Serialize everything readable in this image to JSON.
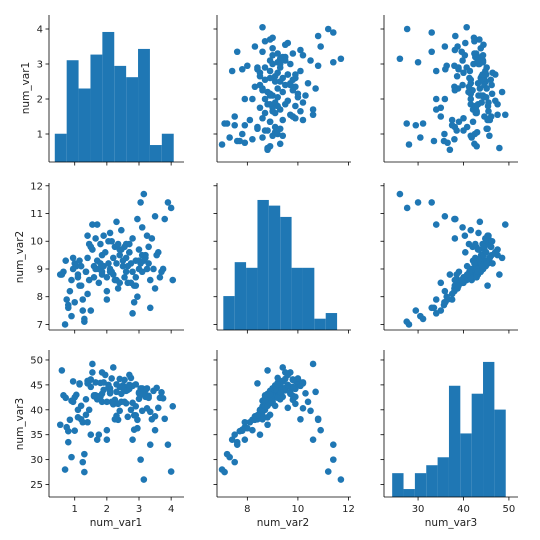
{
  "chart_data": {
    "type": "pairplot",
    "variables": [
      "num_var1",
      "num_var2",
      "num_var3"
    ],
    "color": "#1f77b4",
    "axes": {
      "num_var1": {
        "lim": [
          0.2,
          4.4
        ],
        "ticks": [
          1,
          2,
          3,
          4
        ],
        "tick_labels": [
          "1",
          "2",
          "3",
          "4"
        ]
      },
      "num_var2": {
        "lim": [
          6.8,
          12.1
        ],
        "ticks": [
          7,
          8,
          9,
          10,
          11,
          12
        ],
        "tick_labels": [
          "7",
          "8",
          "9",
          "10",
          "11",
          "12"
        ],
        "x_ticks": [
          8,
          10,
          12
        ],
        "x_tick_labels": [
          "8",
          "10",
          "12"
        ]
      },
      "num_var3": {
        "lim": [
          22.5,
          52.0
        ],
        "ticks": [
          25,
          30,
          35,
          40,
          45,
          50
        ],
        "tick_labels": [
          "25",
          "30",
          "35",
          "40",
          "45",
          "50"
        ],
        "x_ticks": [
          30,
          40,
          50
        ],
        "x_tick_labels": [
          "30",
          "40",
          "50"
        ]
      }
    },
    "histograms": {
      "num_var1": {
        "edges": [
          0.38,
          0.75,
          1.12,
          1.49,
          1.86,
          2.23,
          2.6,
          2.97,
          3.34,
          3.71,
          4.08
        ],
        "counts": [
          5,
          18,
          13,
          19,
          23,
          17,
          15,
          20,
          3,
          5
        ],
        "ymax": 26
      },
      "num_var2": {
        "edges": [
          7.05,
          7.5,
          7.95,
          8.4,
          8.85,
          9.3,
          9.75,
          10.2,
          10.65,
          11.1,
          11.55
        ],
        "counts": [
          6,
          12,
          11,
          23,
          22,
          20,
          11,
          11,
          2,
          3
        ],
        "ymax": 26
      },
      "num_var3": {
        "edges": [
          24.3,
          26.8,
          29.3,
          31.8,
          34.3,
          36.8,
          39.3,
          41.8,
          44.3,
          46.8,
          49.3
        ],
        "counts": [
          3,
          1,
          3,
          4,
          5,
          14,
          8,
          13,
          17,
          11
        ],
        "ymax": 18.5
      }
    },
    "points": {
      "num_var1": [
        0.65,
        0.72,
        0.8,
        0.9,
        0.95,
        1.05,
        0.7,
        0.85,
        1.0,
        1.1,
        0.75,
        1.2,
        0.6,
        0.9,
        1.15,
        1.3,
        1.35,
        1.4,
        1.25,
        1.5,
        1.55,
        1.6,
        1.45,
        1.65,
        1.7,
        1.75,
        1.3,
        1.4,
        1.55,
        1.8,
        1.85,
        1.9,
        1.95,
        2.0,
        1.85,
        2.05,
        2.1,
        2.15,
        2.2,
        2.25,
        2.3,
        2.0,
        2.1,
        2.35,
        2.4,
        2.45,
        2.5,
        2.55,
        2.6,
        2.65,
        2.7,
        2.75,
        2.8,
        2.85,
        2.9,
        2.95,
        3.0,
        3.05,
        3.1,
        3.15,
        3.2,
        3.25,
        3.3,
        3.4,
        3.5,
        3.6,
        3.7,
        3.8,
        3.9,
        4.0,
        4.05,
        1.0,
        1.2,
        1.6,
        2.2,
        2.6,
        3.0,
        3.35,
        1.45,
        2.3,
        2.8,
        3.1,
        1.75,
        2.45,
        2.9,
        3.2,
        1.1,
        1.7,
        2.15,
        2.5,
        2.75,
        3.05,
        3.45,
        3.65,
        1.35,
        1.85,
        2.35,
        2.65,
        3.15,
        3.55,
        0.55,
        0.8,
        1.5,
        2.05,
        2.4,
        2.7,
        3.25,
        3.75,
        1.25,
        1.9,
        2.55,
        2.95,
        3.35,
        0.95,
        1.65,
        2.25,
        2.85,
        3.5,
        1.15,
        1.8,
        2.6,
        3.0,
        3.3,
        2.0,
        2.4,
        2.8,
        1.5,
        2.1,
        2.7,
        3.1,
        1.4,
        2.3,
        2.9
      ],
      "num_var2": [
        8.9,
        9.3,
        7.6,
        8.6,
        9.0,
        9.1,
        7.0,
        8.2,
        9.2,
        8.7,
        7.9,
        9.1,
        8.8,
        7.3,
        8.4,
        7.2,
        8.9,
        9.4,
        7.5,
        9.8,
        10.6,
        8.7,
        9.9,
        10.1,
        9.3,
        8.5,
        7.1,
        8.1,
        9.7,
        9.2,
        8.8,
        10.2,
        9.6,
        8.2,
        9.5,
        10.0,
        10.3,
        8.9,
        9.4,
        9.8,
        8.6,
        7.9,
        9.0,
        8.3,
        9.5,
        10.4,
        9.1,
        8.7,
        9.9,
        8.5,
        9.6,
        9.2,
        10.1,
        8.4,
        9.3,
        10.8,
        9.7,
        11.4,
        10.5,
        11.7,
        9.5,
        10.2,
        9.8,
        10.1,
        10.9,
        9.6,
        8.9,
        10.8,
        11.4,
        11.2,
        8.6,
        7.8,
        8.4,
        9.1,
        8.8,
        9.4,
        9.0,
        7.6,
        8.6,
        10.7,
        8.9,
        9.5,
        9.0,
        9.7,
        8.7,
        9.4,
        8.8,
        10.6,
        10.0,
        9.3,
        8.5,
        9.2,
        9.0,
        8.7,
        8.9,
        8.9,
        9.9,
        9.1,
        9.3,
        9.5,
        8.8,
        7.7,
        7.5,
        9.2,
        8.5,
        9.9,
        9.0,
        9.0,
        7.9,
        9.1,
        9.8,
        8.0,
        8.6,
        9.4,
        9.0,
        8.6,
        7.8,
        8.3,
        9.3,
        9.9,
        8.9,
        9.3,
        9.2,
        8.7,
        9.7,
        7.4,
        9.8,
        8.9,
        9.6,
        8.9,
        10.2,
        9.2,
        8.4,
        8.8
      ],
      "num_var3": [
        42.9,
        42.4,
        33.5,
        41.8,
        41.6,
        43.0,
        28.0,
        38.0,
        42.5,
        40.0,
        36.5,
        40.8,
        47.9,
        30.5,
        45.3,
        31.1,
        39.0,
        45.8,
        29.5,
        46.1,
        49.2,
        42.9,
        45.8,
        45.5,
        42.1,
        35.0,
        27.5,
        37.5,
        47.5,
        45.4,
        43.2,
        45.5,
        47.0,
        35.9,
        47.5,
        45.0,
        43.3,
        41.6,
        48.5,
        42.0,
        38.8,
        34.0,
        44.3,
        38.0,
        46.2,
        41.6,
        44.9,
        41.6,
        44.5,
        38.6,
        47.0,
        46.4,
        44.8,
        38.9,
        45.1,
        38.0,
        43.5,
        30.0,
        39.8,
        26.0,
        43.9,
        40.3,
        42.8,
        38.1,
        35.9,
        40.4,
        43.5,
        38.2,
        33.0,
        27.6,
        40.7,
        35.8,
        38.1,
        42.7,
        41.1,
        43.8,
        43.3,
        33.0,
        40.0,
        43.6,
        41.4,
        44.3,
        42.7,
        43.2,
        40.7,
        42.6,
        38.5,
        34.0,
        46.3,
        44.4,
        40.0,
        44.3,
        43.8,
        42.4,
        42.1,
        41.6,
        41.2,
        44.0,
        43.5,
        44.4,
        37.0,
        35.7,
        35.0,
        44.5,
        39.8,
        44.2,
        44.3,
        42.3,
        37.5,
        44.0,
        46.0,
        36.3,
        39.6,
        45.7,
        42.9,
        38.1,
        36.0,
        38.7,
        45.1,
        42.6,
        41.3,
        42.2,
        42.4,
        41.6,
        44.6,
        34.0,
        44.6,
        43.8,
        45.0,
        43.1,
        45.3,
        45.1,
        38.9,
        40.8
      ]
    }
  },
  "labels": {
    "row": [
      "num_var1",
      "num_var2",
      "num_var3"
    ],
    "col": [
      "num_var1",
      "num_var2",
      "num_var3"
    ]
  }
}
